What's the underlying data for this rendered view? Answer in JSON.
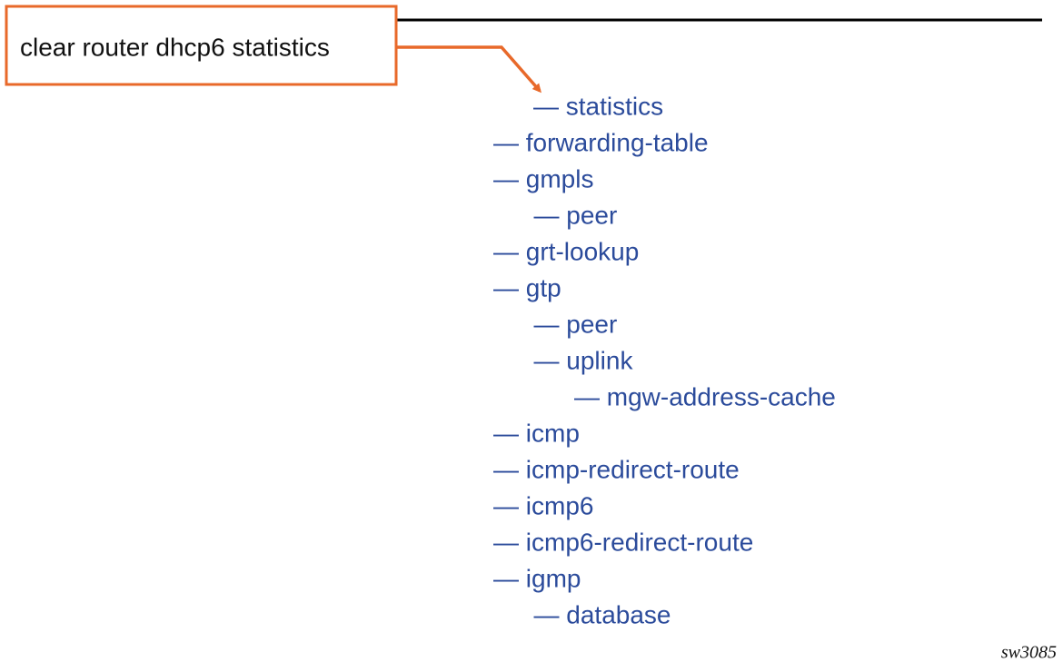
{
  "command": "clear router dhcp6 statistics",
  "target": "— statistics",
  "tree": [
    {
      "label": "— forwarding-table"
    },
    {
      "label": "— gmpls",
      "children": [
        {
          "label": "— peer"
        }
      ]
    },
    {
      "label": "— grt-lookup"
    },
    {
      "label": "— gtp",
      "children": [
        {
          "label": "— peer"
        },
        {
          "label": "— uplink",
          "children": [
            {
              "label": "— mgw-address-cache"
            }
          ]
        }
      ]
    },
    {
      "label": "— icmp"
    },
    {
      "label": "— icmp-redirect-route"
    },
    {
      "label": "— icmp6"
    },
    {
      "label": "— icmp6-redirect-route"
    },
    {
      "label": "— igmp",
      "children": [
        {
          "label": "— database"
        }
      ]
    }
  ],
  "figure_id": "sw3085"
}
